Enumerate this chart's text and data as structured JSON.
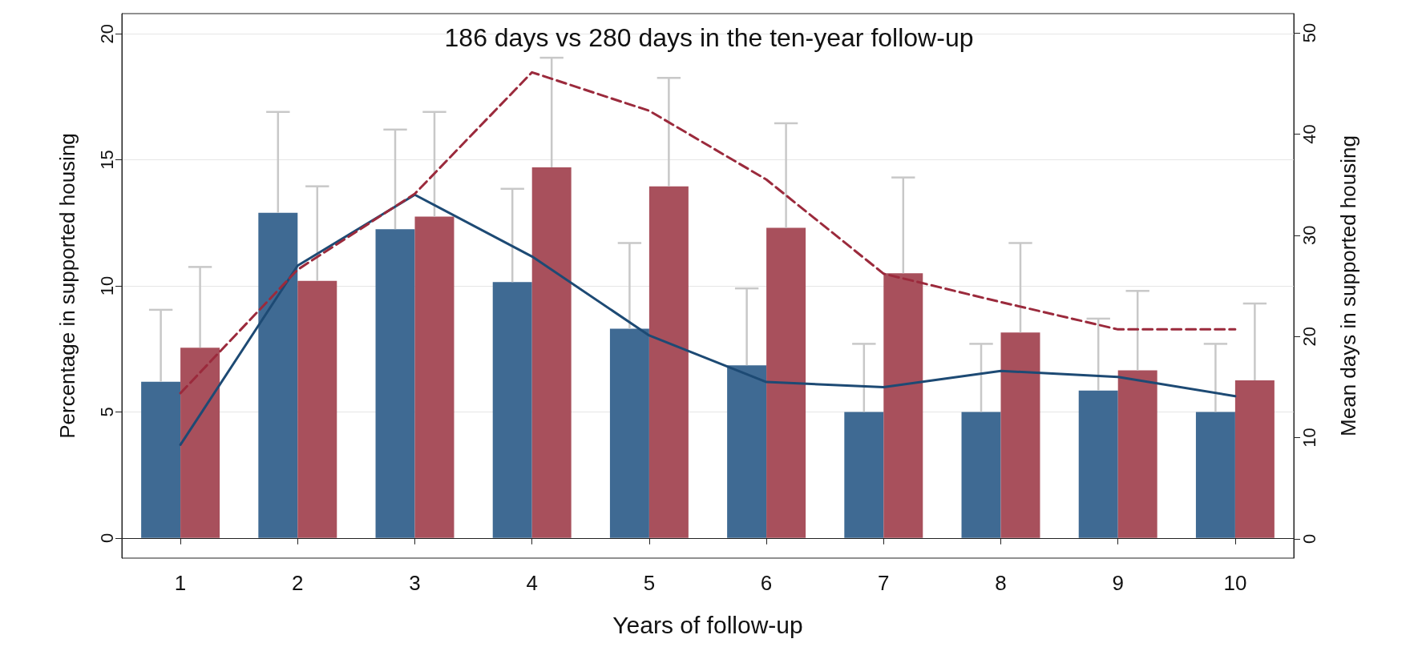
{
  "chart_data": {
    "type": "bar",
    "title": "186 days vs 280 days in the ten-year follow-up",
    "xlabel": "Years of follow-up",
    "ylabel": "Percentage in supported housing",
    "y2label": "Mean days in supported housing",
    "categories": [
      "1",
      "2",
      "3",
      "4",
      "5",
      "6",
      "7",
      "8",
      "9",
      "10"
    ],
    "series": [
      {
        "color": "#3f6a93",
        "values": [
          6.2,
          12.9,
          12.25,
          10.15,
          8.3,
          6.85,
          5.0,
          5.0,
          5.85,
          5.0
        ],
        "errors": [
          [
            6.2,
            9.05
          ],
          [
            12.9,
            16.9
          ],
          [
            12.25,
            16.2
          ],
          [
            10.15,
            13.85
          ],
          [
            8.3,
            11.7
          ],
          [
            6.85,
            9.9
          ],
          [
            5.0,
            7.7
          ],
          [
            5.0,
            7.7
          ],
          [
            5.85,
            8.7
          ],
          [
            5.0,
            7.7
          ]
        ]
      },
      {
        "color": "#a8505c",
        "values": [
          7.55,
          10.2,
          12.75,
          14.7,
          13.95,
          12.3,
          10.5,
          8.15,
          6.65,
          6.25
        ],
        "errors": [
          [
            7.55,
            10.75
          ],
          [
            10.2,
            13.95
          ],
          [
            12.75,
            16.9
          ],
          [
            14.7,
            19.05
          ],
          [
            13.95,
            18.25
          ],
          [
            12.3,
            16.45
          ],
          [
            10.5,
            14.3
          ],
          [
            8.15,
            11.7
          ],
          [
            6.65,
            9.8
          ],
          [
            6.25,
            9.3
          ]
        ]
      },
      {
        "type": "line",
        "axis": "y2",
        "color": "#1d4a74",
        "line_style": "solid",
        "values": [
          9.3,
          27.0,
          34.0,
          27.9,
          20.1,
          15.5,
          15.0,
          16.6,
          16.0,
          14.1
        ]
      },
      {
        "type": "line",
        "axis": "y2",
        "color": "#9b2a3c",
        "line_style": "dashed",
        "values": [
          14.4,
          26.6,
          34.1,
          46.1,
          42.3,
          35.5,
          26.2,
          23.4,
          20.7,
          20.7
        ]
      }
    ],
    "ylim": [
      -0.8,
      20.8
    ],
    "yticks": [
      0,
      5,
      10,
      15,
      20
    ],
    "y2lim": [
      -1.9,
      51.9
    ],
    "y2ticks": [
      0,
      10,
      20,
      30,
      40,
      50
    ],
    "grid": "y",
    "marker": "none"
  }
}
